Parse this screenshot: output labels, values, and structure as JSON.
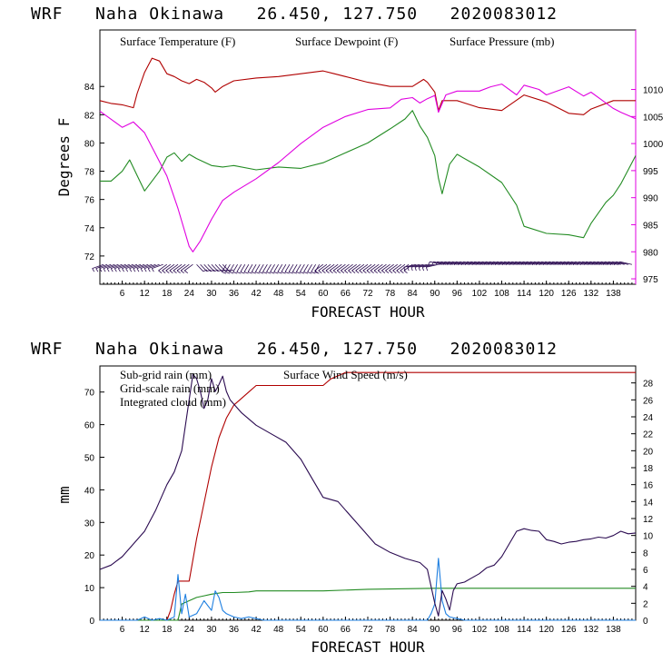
{
  "colors": {
    "temperature": "#b00000",
    "dewpoint": "#228b22",
    "pressure": "#e000e0",
    "subgrid_rain": "#b00000",
    "gridscale_rain": "#228b22",
    "cloud": "#1e7fe0",
    "wind": "#2a0a50",
    "barbs": "#2a0a50"
  },
  "chart_data": [
    {
      "type": "line",
      "title": "WRF   Naha Okinawa   26.450, 127.750   2020083012",
      "xlabel": "FORECAST HOUR",
      "ylabel_left": "Degrees F",
      "xlim": [
        0,
        144
      ],
      "ylim_left": [
        70,
        88
      ],
      "ylim_right": [
        974,
        1021
      ],
      "x_ticks": [
        6,
        12,
        18,
        24,
        30,
        36,
        42,
        48,
        54,
        60,
        66,
        72,
        78,
        84,
        90,
        96,
        102,
        108,
        114,
        120,
        126,
        132,
        138
      ],
      "x_tick_labels": [
        "6",
        "12",
        "18",
        "24",
        "30",
        "36",
        "42",
        "48",
        "54",
        "60",
        "66",
        "72",
        "78",
        "84",
        "90",
        "96",
        "102",
        "108",
        "114",
        "120",
        "126",
        "132",
        "138"
      ],
      "y_ticks_left": [
        72,
        74,
        76,
        78,
        80,
        82,
        84
      ],
      "y_tick_labels_left": [
        "72",
        "74",
        "76",
        "78",
        "80",
        "82",
        "84"
      ],
      "y_ticks_right": [
        975,
        980,
        985,
        990,
        995,
        1000,
        1005,
        1010
      ],
      "y_tick_labels_right": [
        "975",
        "980",
        "985",
        "990",
        "995",
        "1000",
        "1005",
        "1010"
      ],
      "legend": [
        "Surface Temperature (F)",
        "Surface Dewpoint (F)",
        "Surface Pressure (mb)"
      ],
      "series": [
        {
          "name": "Surface Temperature (F)",
          "axis": "left",
          "x": [
            0,
            3,
            6,
            9,
            10,
            12,
            14,
            16,
            18,
            20,
            22,
            24,
            26,
            28,
            30,
            31,
            33,
            36,
            42,
            48,
            54,
            60,
            63,
            66,
            72,
            78,
            84,
            87,
            88,
            90,
            91,
            92,
            96,
            102,
            108,
            114,
            120,
            126,
            130,
            132,
            138,
            144
          ],
          "y": [
            83,
            82.8,
            82.7,
            82.5,
            83.5,
            85,
            86,
            85.8,
            84.9,
            84.7,
            84.4,
            84.2,
            84.5,
            84.3,
            83.9,
            83.6,
            84,
            84.4,
            84.6,
            84.7,
            84.9,
            85.1,
            84.9,
            84.7,
            84.3,
            84,
            84,
            84.5,
            84.3,
            83.6,
            82.3,
            83,
            83,
            82.5,
            82.3,
            83.4,
            82.9,
            82.1,
            82,
            82.4,
            83,
            83
          ]
        },
        {
          "name": "Surface Dewpoint (F)",
          "axis": "left",
          "x": [
            0,
            3,
            6,
            8,
            10,
            12,
            14,
            16,
            18,
            20,
            22,
            24,
            26,
            30,
            33,
            36,
            42,
            48,
            54,
            60,
            66,
            72,
            78,
            82,
            84,
            86,
            88,
            90,
            91,
            92,
            94,
            96,
            102,
            108,
            112,
            114,
            120,
            126,
            130,
            132,
            136,
            138,
            140,
            144
          ],
          "y": [
            77.3,
            77.3,
            78,
            78.8,
            77.7,
            76.6,
            77.3,
            78,
            79,
            79.3,
            78.7,
            79.2,
            78.9,
            78.4,
            78.3,
            78.4,
            78.1,
            78.3,
            78.2,
            78.6,
            79.3,
            80,
            81,
            81.7,
            82.3,
            81.2,
            80.4,
            79.1,
            77.5,
            76.4,
            78.5,
            79.2,
            78.3,
            77.2,
            75.6,
            74.1,
            73.6,
            73.5,
            73.3,
            74.3,
            75.8,
            76.3,
            77.1,
            79.1
          ]
        },
        {
          "name": "Surface Pressure (mb)",
          "axis": "right",
          "x": [
            0,
            3,
            6,
            9,
            12,
            15,
            18,
            21,
            24,
            25,
            27,
            30,
            33,
            36,
            42,
            48,
            54,
            60,
            66,
            72,
            78,
            81,
            84,
            86,
            88,
            90,
            91,
            93,
            96,
            102,
            105,
            108,
            112,
            114,
            118,
            120,
            126,
            130,
            132,
            135,
            138,
            140,
            144
          ],
          "y": [
            1006,
            1004.5,
            1003,
            1004,
            1002,
            998,
            994,
            988,
            981,
            980,
            982,
            986,
            989.5,
            991,
            993.5,
            996.5,
            1000,
            1003,
            1005,
            1006.3,
            1006.6,
            1008.2,
            1008.5,
            1007.5,
            1008.3,
            1008.9,
            1005.8,
            1009,
            1009.7,
            1009.7,
            1010.5,
            1011,
            1009,
            1010.8,
            1010,
            1009,
            1010.5,
            1008.8,
            1009.5,
            1008,
            1006.5,
            1005.8,
            1004.6
          ]
        }
      ],
      "wind_barbs": "plotted along bottom of panel every forecast hour"
    },
    {
      "type": "line",
      "title": "WRF   Naha Okinawa   26.450, 127.750   2020083012",
      "xlabel": "FORECAST HOUR",
      "ylabel_left": "mm",
      "xlim": [
        0,
        144
      ],
      "ylim_left": [
        0,
        78
      ],
      "ylim_right": [
        0,
        30
      ],
      "x_ticks": [
        6,
        12,
        18,
        24,
        30,
        36,
        42,
        48,
        54,
        60,
        66,
        72,
        78,
        84,
        90,
        96,
        102,
        108,
        114,
        120,
        126,
        132,
        138
      ],
      "x_tick_labels": [
        "6",
        "12",
        "18",
        "24",
        "30",
        "36",
        "42",
        "48",
        "54",
        "60",
        "66",
        "72",
        "78",
        "84",
        "90",
        "96",
        "102",
        "108",
        "114",
        "120",
        "126",
        "132",
        "138"
      ],
      "y_ticks_left": [
        0,
        10,
        20,
        30,
        40,
        50,
        60,
        70
      ],
      "y_tick_labels_left": [
        "0",
        "10",
        "20",
        "30",
        "40",
        "50",
        "60",
        "70"
      ],
      "y_ticks_right": [
        0,
        2,
        4,
        6,
        8,
        10,
        12,
        14,
        16,
        18,
        20,
        22,
        24,
        26,
        28
      ],
      "y_tick_labels_right": [
        "0",
        "2",
        "4",
        "6",
        "8",
        "10",
        "12",
        "14",
        "16",
        "18",
        "20",
        "22",
        "24",
        "26",
        "28"
      ],
      "legend": [
        "Sub-grid rain (mm)",
        "Surface Wind Speed (m/s)",
        "Grid-scale rain (mm)",
        "Integrated cloud (mm)"
      ],
      "series": [
        {
          "name": "Sub-grid rain (mm)",
          "axis": "left",
          "x": [
            0,
            18,
            19,
            20,
            21,
            22,
            23,
            24,
            26,
            28,
            30,
            32,
            34,
            36,
            38,
            40,
            42,
            48,
            54,
            60,
            62,
            66,
            72,
            90,
            96,
            120,
            144
          ],
          "y": [
            0,
            0,
            3,
            8,
            12,
            12,
            12,
            12,
            25,
            36,
            47,
            56,
            62,
            66,
            68,
            70,
            72,
            72,
            72,
            72,
            74,
            76,
            76,
            76,
            76,
            76,
            76
          ]
        },
        {
          "name": "Grid-scale rain (mm)",
          "axis": "left",
          "x": [
            0,
            21,
            22,
            24,
            26,
            28,
            30,
            33,
            36,
            40,
            42,
            48,
            60,
            72,
            90,
            120,
            144
          ],
          "y": [
            0,
            0,
            5,
            6,
            7,
            7.5,
            8,
            8.5,
            8.5,
            8.7,
            9,
            9,
            9,
            9.5,
            9.8,
            9.8,
            9.8
          ]
        },
        {
          "name": "Integrated cloud (mm)",
          "axis": "left",
          "x": [
            0,
            10,
            12,
            14,
            16,
            18,
            20,
            21,
            22,
            23,
            24,
            26,
            28,
            30,
            31,
            32,
            33,
            34,
            36,
            38,
            40,
            42,
            44,
            48,
            60,
            72,
            84,
            88,
            89,
            90,
            91,
            92,
            93,
            94,
            96,
            98,
            100,
            102,
            120,
            144
          ],
          "y": [
            0,
            0,
            1,
            0,
            0.5,
            0,
            1,
            14,
            2,
            8,
            1,
            2,
            6,
            3,
            9,
            7,
            3,
            2,
            1,
            0.5,
            1,
            0.5,
            0,
            0,
            0,
            0,
            0,
            0,
            2,
            5,
            19,
            6,
            2,
            1,
            0.5,
            0,
            0,
            0,
            0,
            0
          ]
        },
        {
          "name": "Surface Wind Speed (m/s)",
          "axis": "right",
          "x": [
            0,
            3,
            6,
            9,
            12,
            15,
            18,
            20,
            22,
            24,
            25,
            26,
            27,
            28,
            29,
            30,
            31,
            32,
            33,
            34,
            35,
            36,
            38,
            42,
            46,
            50,
            54,
            56,
            60,
            64,
            66,
            70,
            74,
            78,
            82,
            86,
            88,
            89,
            90,
            91,
            92,
            93,
            94,
            95,
            96,
            98,
            100,
            102,
            104,
            106,
            108,
            110,
            112,
            114,
            116,
            118,
            120,
            122,
            124,
            126,
            128,
            130,
            132,
            134,
            136,
            138,
            140,
            142,
            144
          ],
          "y": [
            6,
            6.5,
            7.5,
            9,
            10.5,
            13,
            16,
            17.5,
            20,
            26,
            29,
            28.5,
            27,
            25,
            26,
            28.5,
            27,
            27.8,
            28.8,
            27,
            26,
            25.5,
            24.5,
            23,
            22,
            21,
            19,
            17.5,
            14.5,
            14,
            13,
            11,
            9,
            8,
            7.3,
            6.8,
            6,
            4,
            2,
            0.5,
            3.5,
            2.5,
            1.2,
            3.5,
            4.3,
            4.5,
            5,
            5.5,
            6.2,
            6.5,
            7.5,
            9,
            10.5,
            10.8,
            10.6,
            10.5,
            9.5,
            9.3,
            9,
            9.2,
            9.3,
            9.5,
            9.6,
            9.8,
            9.7,
            10,
            10.5,
            10.2,
            10.3
          ]
        }
      ]
    }
  ]
}
